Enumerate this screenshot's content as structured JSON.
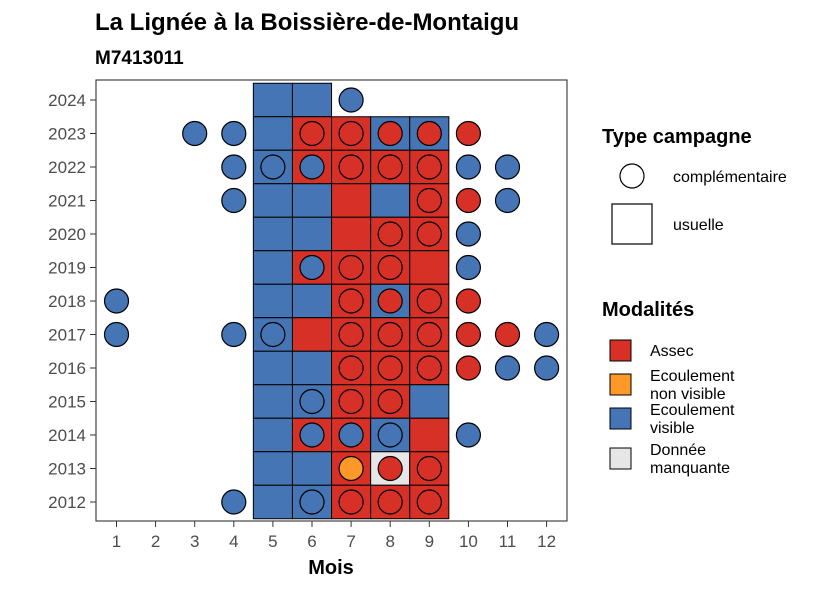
{
  "chart_data": {
    "type": "heatmap",
    "title": "La Lignée à la Boissière-de-Montaigu",
    "subtitle": "M7413011",
    "xlabel": "Mois",
    "ylabel": "",
    "x_ticks": [
      "1",
      "2",
      "3",
      "4",
      "5",
      "6",
      "7",
      "8",
      "9",
      "10",
      "11",
      "12"
    ],
    "y_ticks": [
      "2012",
      "2013",
      "2014",
      "2015",
      "2016",
      "2017",
      "2018",
      "2019",
      "2020",
      "2021",
      "2022",
      "2023",
      "2024"
    ],
    "xlim": [
      0.5,
      12.5
    ],
    "ylim": [
      2011.5,
      2024.5
    ],
    "grid": false,
    "legend_position": "right",
    "colors": {
      "Assec": "#d73027",
      "Ecoulement non visible": "#fe9929",
      "Ecoulement visible": "#4575b4",
      "Donnée manquante": "#e6e6e6"
    },
    "usuelle": [
      {
        "year": 2024,
        "month": 5,
        "modalite": "Ecoulement visible"
      },
      {
        "year": 2024,
        "month": 6,
        "modalite": "Ecoulement visible"
      },
      {
        "year": 2023,
        "month": 5,
        "modalite": "Ecoulement visible"
      },
      {
        "year": 2023,
        "month": 6,
        "modalite": "Assec"
      },
      {
        "year": 2023,
        "month": 7,
        "modalite": "Assec"
      },
      {
        "year": 2023,
        "month": 8,
        "modalite": "Ecoulement visible"
      },
      {
        "year": 2023,
        "month": 9,
        "modalite": "Ecoulement visible"
      },
      {
        "year": 2022,
        "month": 5,
        "modalite": "Ecoulement visible"
      },
      {
        "year": 2022,
        "month": 6,
        "modalite": "Assec"
      },
      {
        "year": 2022,
        "month": 7,
        "modalite": "Assec"
      },
      {
        "year": 2022,
        "month": 8,
        "modalite": "Assec"
      },
      {
        "year": 2022,
        "month": 9,
        "modalite": "Assec"
      },
      {
        "year": 2021,
        "month": 5,
        "modalite": "Ecoulement visible"
      },
      {
        "year": 2021,
        "month": 6,
        "modalite": "Ecoulement visible"
      },
      {
        "year": 2021,
        "month": 7,
        "modalite": "Assec"
      },
      {
        "year": 2021,
        "month": 8,
        "modalite": "Ecoulement visible"
      },
      {
        "year": 2021,
        "month": 9,
        "modalite": "Assec"
      },
      {
        "year": 2020,
        "month": 5,
        "modalite": "Ecoulement visible"
      },
      {
        "year": 2020,
        "month": 6,
        "modalite": "Ecoulement visible"
      },
      {
        "year": 2020,
        "month": 7,
        "modalite": "Assec"
      },
      {
        "year": 2020,
        "month": 8,
        "modalite": "Assec"
      },
      {
        "year": 2020,
        "month": 9,
        "modalite": "Assec"
      },
      {
        "year": 2019,
        "month": 5,
        "modalite": "Ecoulement visible"
      },
      {
        "year": 2019,
        "month": 6,
        "modalite": "Assec"
      },
      {
        "year": 2019,
        "month": 7,
        "modalite": "Assec"
      },
      {
        "year": 2019,
        "month": 8,
        "modalite": "Assec"
      },
      {
        "year": 2019,
        "month": 9,
        "modalite": "Assec"
      },
      {
        "year": 2018,
        "month": 5,
        "modalite": "Ecoulement visible"
      },
      {
        "year": 2018,
        "month": 6,
        "modalite": "Ecoulement visible"
      },
      {
        "year": 2018,
        "month": 7,
        "modalite": "Assec"
      },
      {
        "year": 2018,
        "month": 8,
        "modalite": "Ecoulement visible"
      },
      {
        "year": 2018,
        "month": 9,
        "modalite": "Assec"
      },
      {
        "year": 2017,
        "month": 5,
        "modalite": "Ecoulement visible"
      },
      {
        "year": 2017,
        "month": 6,
        "modalite": "Assec"
      },
      {
        "year": 2017,
        "month": 7,
        "modalite": "Assec"
      },
      {
        "year": 2017,
        "month": 8,
        "modalite": "Assec"
      },
      {
        "year": 2017,
        "month": 9,
        "modalite": "Assec"
      },
      {
        "year": 2016,
        "month": 5,
        "modalite": "Ecoulement visible"
      },
      {
        "year": 2016,
        "month": 6,
        "modalite": "Ecoulement visible"
      },
      {
        "year": 2016,
        "month": 7,
        "modalite": "Assec"
      },
      {
        "year": 2016,
        "month": 8,
        "modalite": "Assec"
      },
      {
        "year": 2016,
        "month": 9,
        "modalite": "Assec"
      },
      {
        "year": 2015,
        "month": 5,
        "modalite": "Ecoulement visible"
      },
      {
        "year": 2015,
        "month": 6,
        "modalite": "Ecoulement visible"
      },
      {
        "year": 2015,
        "month": 7,
        "modalite": "Assec"
      },
      {
        "year": 2015,
        "month": 8,
        "modalite": "Assec"
      },
      {
        "year": 2015,
        "month": 9,
        "modalite": "Ecoulement visible"
      },
      {
        "year": 2014,
        "month": 5,
        "modalite": "Ecoulement visible"
      },
      {
        "year": 2014,
        "month": 6,
        "modalite": "Assec"
      },
      {
        "year": 2014,
        "month": 7,
        "modalite": "Assec"
      },
      {
        "year": 2014,
        "month": 8,
        "modalite": "Ecoulement visible"
      },
      {
        "year": 2014,
        "month": 9,
        "modalite": "Assec"
      },
      {
        "year": 2013,
        "month": 5,
        "modalite": "Ecoulement visible"
      },
      {
        "year": 2013,
        "month": 6,
        "modalite": "Ecoulement visible"
      },
      {
        "year": 2013,
        "month": 7,
        "modalite": "Assec"
      },
      {
        "year": 2013,
        "month": 8,
        "modalite": "Donnée manquante"
      },
      {
        "year": 2013,
        "month": 9,
        "modalite": "Assec"
      },
      {
        "year": 2012,
        "month": 5,
        "modalite": "Ecoulement visible"
      },
      {
        "year": 2012,
        "month": 6,
        "modalite": "Ecoulement visible"
      },
      {
        "year": 2012,
        "month": 7,
        "modalite": "Assec"
      },
      {
        "year": 2012,
        "month": 8,
        "modalite": "Assec"
      },
      {
        "year": 2012,
        "month": 9,
        "modalite": "Assec"
      }
    ],
    "complementaire": [
      {
        "year": 2024,
        "month": 7,
        "modalite": "Ecoulement visible"
      },
      {
        "year": 2023,
        "month": 3,
        "modalite": "Ecoulement visible"
      },
      {
        "year": 2023,
        "month": 4,
        "modalite": "Ecoulement visible"
      },
      {
        "year": 2023,
        "month": 6,
        "modalite": "Assec"
      },
      {
        "year": 2023,
        "month": 7,
        "modalite": "Assec"
      },
      {
        "year": 2023,
        "month": 8,
        "modalite": "Assec"
      },
      {
        "year": 2023,
        "month": 9,
        "modalite": "Assec"
      },
      {
        "year": 2023,
        "month": 10,
        "modalite": "Assec"
      },
      {
        "year": 2022,
        "month": 4,
        "modalite": "Ecoulement visible"
      },
      {
        "year": 2022,
        "month": 5,
        "modalite": "Ecoulement visible"
      },
      {
        "year": 2022,
        "month": 6,
        "modalite": "Ecoulement visible"
      },
      {
        "year": 2022,
        "month": 7,
        "modalite": "Assec"
      },
      {
        "year": 2022,
        "month": 8,
        "modalite": "Assec"
      },
      {
        "year": 2022,
        "month": 9,
        "modalite": "Assec"
      },
      {
        "year": 2022,
        "month": 10,
        "modalite": "Ecoulement visible"
      },
      {
        "year": 2022,
        "month": 11,
        "modalite": "Ecoulement visible"
      },
      {
        "year": 2021,
        "month": 4,
        "modalite": "Ecoulement visible"
      },
      {
        "year": 2021,
        "month": 9,
        "modalite": "Assec"
      },
      {
        "year": 2021,
        "month": 10,
        "modalite": "Assec"
      },
      {
        "year": 2021,
        "month": 11,
        "modalite": "Ecoulement visible"
      },
      {
        "year": 2020,
        "month": 8,
        "modalite": "Assec"
      },
      {
        "year": 2020,
        "month": 9,
        "modalite": "Assec"
      },
      {
        "year": 2020,
        "month": 10,
        "modalite": "Ecoulement visible"
      },
      {
        "year": 2019,
        "month": 6,
        "modalite": "Ecoulement visible"
      },
      {
        "year": 2019,
        "month": 7,
        "modalite": "Assec"
      },
      {
        "year": 2019,
        "month": 8,
        "modalite": "Assec"
      },
      {
        "year": 2019,
        "month": 10,
        "modalite": "Ecoulement visible"
      },
      {
        "year": 2018,
        "month": 1,
        "modalite": "Ecoulement visible"
      },
      {
        "year": 2018,
        "month": 7,
        "modalite": "Assec"
      },
      {
        "year": 2018,
        "month": 8,
        "modalite": "Assec"
      },
      {
        "year": 2018,
        "month": 9,
        "modalite": "Assec"
      },
      {
        "year": 2018,
        "month": 10,
        "modalite": "Assec"
      },
      {
        "year": 2017,
        "month": 1,
        "modalite": "Ecoulement visible"
      },
      {
        "year": 2017,
        "month": 4,
        "modalite": "Ecoulement visible"
      },
      {
        "year": 2017,
        "month": 5,
        "modalite": "Ecoulement visible"
      },
      {
        "year": 2017,
        "month": 7,
        "modalite": "Assec"
      },
      {
        "year": 2017,
        "month": 8,
        "modalite": "Assec"
      },
      {
        "year": 2017,
        "month": 9,
        "modalite": "Assec"
      },
      {
        "year": 2017,
        "month": 10,
        "modalite": "Assec"
      },
      {
        "year": 2017,
        "month": 11,
        "modalite": "Assec"
      },
      {
        "year": 2017,
        "month": 12,
        "modalite": "Ecoulement visible"
      },
      {
        "year": 2016,
        "month": 7,
        "modalite": "Assec"
      },
      {
        "year": 2016,
        "month": 8,
        "modalite": "Assec"
      },
      {
        "year": 2016,
        "month": 9,
        "modalite": "Assec"
      },
      {
        "year": 2016,
        "month": 10,
        "modalite": "Assec"
      },
      {
        "year": 2016,
        "month": 11,
        "modalite": "Ecoulement visible"
      },
      {
        "year": 2016,
        "month": 12,
        "modalite": "Ecoulement visible"
      },
      {
        "year": 2015,
        "month": 6,
        "modalite": "Ecoulement visible"
      },
      {
        "year": 2015,
        "month": 7,
        "modalite": "Assec"
      },
      {
        "year": 2015,
        "month": 8,
        "modalite": "Assec"
      },
      {
        "year": 2014,
        "month": 6,
        "modalite": "Ecoulement visible"
      },
      {
        "year": 2014,
        "month": 7,
        "modalite": "Ecoulement visible"
      },
      {
        "year": 2014,
        "month": 8,
        "modalite": "Ecoulement visible"
      },
      {
        "year": 2014,
        "month": 10,
        "modalite": "Ecoulement visible"
      },
      {
        "year": 2013,
        "month": 7,
        "modalite": "Ecoulement non visible"
      },
      {
        "year": 2013,
        "month": 8,
        "modalite": "Assec"
      },
      {
        "year": 2013,
        "month": 9,
        "modalite": "Assec"
      },
      {
        "year": 2012,
        "month": 4,
        "modalite": "Ecoulement visible"
      },
      {
        "year": 2012,
        "month": 6,
        "modalite": "Ecoulement visible"
      },
      {
        "year": 2012,
        "month": 7,
        "modalite": "Assec"
      },
      {
        "year": 2012,
        "month": 8,
        "modalite": "Assec"
      },
      {
        "year": 2012,
        "month": 9,
        "modalite": "Assec"
      }
    ]
  },
  "legend": {
    "type_title": "Type campagne",
    "type_items": [
      {
        "key": "complementaire",
        "label": "complémentaire"
      },
      {
        "key": "usuelle",
        "label": "usuelle"
      }
    ],
    "modalites_title": "Modalités",
    "modalites_items": [
      {
        "key": "Assec",
        "lines": [
          "Assec"
        ],
        "color": "#d73027"
      },
      {
        "key": "Ecoulement non visible",
        "lines": [
          "Ecoulement",
          "non visible"
        ],
        "color": "#fe9929"
      },
      {
        "key": "Ecoulement visible",
        "lines": [
          "Ecoulement",
          "visible"
        ],
        "color": "#4575b4"
      },
      {
        "key": "Donnée manquante",
        "lines": [
          "Donnée",
          "manquante"
        ],
        "color": "#e6e6e6"
      }
    ]
  }
}
